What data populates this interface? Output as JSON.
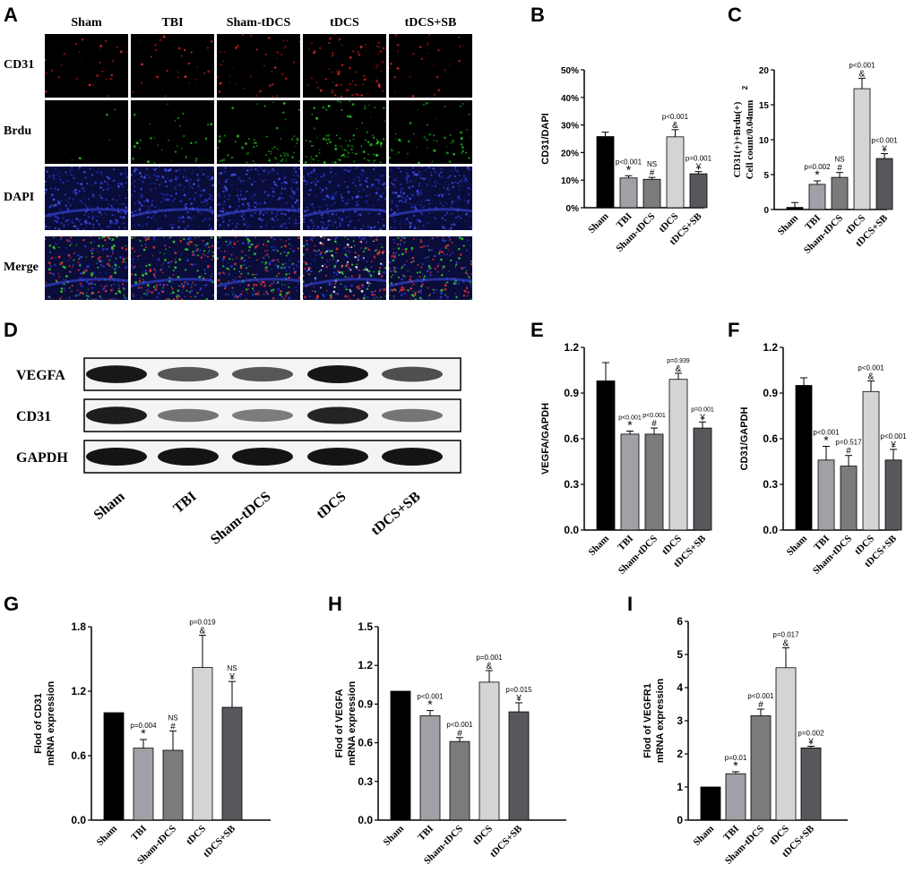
{
  "panels": [
    "A",
    "B",
    "C",
    "D",
    "E",
    "F",
    "G",
    "H",
    "I"
  ],
  "panel_a": {
    "conditions": [
      "Sham",
      "TBI",
      "Sham-tDCS",
      "tDCS",
      "tDCS+SB"
    ],
    "stains": [
      "CD31",
      "Brdu",
      "DAPI",
      "Merge"
    ]
  },
  "panel_d": {
    "proteins": [
      "VEGFA",
      "CD31",
      "GAPDH"
    ],
    "lanes": [
      "Sham",
      "TBI",
      "Sham-tDCS",
      "tDCS",
      "tDCS+SB"
    ],
    "band_intensity": {
      "VEGFA": [
        0.98,
        0.63,
        0.63,
        0.99,
        0.67
      ],
      "CD31": [
        0.95,
        0.46,
        0.42,
        0.91,
        0.46
      ],
      "GAPDH": [
        1,
        1,
        1,
        1,
        1
      ]
    }
  },
  "colors": {
    "Sham": "#000000",
    "TBI": "#a0a0a6",
    "Sham-tDCS": "#7b7b7e",
    "tDCS": "#d4d4d4",
    "tDCS+SB": "#58585c"
  },
  "chart_data": [
    {
      "id": "B",
      "type": "bar",
      "categories": [
        "Sham",
        "TBI",
        "Sham-tDCS",
        "tDCS",
        "tDCS+SB"
      ],
      "values": [
        25.8,
        10.8,
        10.3,
        25.7,
        12.3
      ],
      "errors": [
        1.6,
        0.8,
        0.7,
        2.6,
        0.8
      ],
      "annotations": [
        [],
        [
          "p<0.001",
          "*"
        ],
        [
          "NS",
          "#"
        ],
        [
          "p<0.001",
          "&"
        ],
        [
          "p=0.001",
          "¥"
        ]
      ],
      "ylabel": [
        "CD31/DAPI"
      ],
      "ylim": [
        0,
        50
      ],
      "yticks": [
        0,
        10,
        20,
        30,
        40,
        50
      ],
      "ytick_labels": [
        "0%",
        "10%",
        "20%",
        "30%",
        "40%",
        "50%"
      ]
    },
    {
      "id": "C",
      "type": "bar",
      "categories": [
        "Sham",
        "TBI",
        "Sham-tDCS",
        "tDCS",
        "tDCS+SB"
      ],
      "values": [
        0.3,
        3.6,
        4.6,
        17.3,
        7.3
      ],
      "errors": [
        0.7,
        0.5,
        0.7,
        1.5,
        0.7
      ],
      "annotations": [
        [],
        [
          "p=0.002",
          "*"
        ],
        [
          "NS",
          "#"
        ],
        [
          "p<0.001",
          "&"
        ],
        [
          "p<0.001",
          "¥"
        ]
      ],
      "ylabel": [
        "CD31(+)+Brdu(+)",
        "Cell count/0.04mm",
        "2"
      ],
      "ylim": [
        0,
        20
      ],
      "yticks": [
        0,
        5,
        10,
        15,
        20
      ],
      "ytick_labels": [
        "0",
        "5",
        "10",
        "15",
        "20"
      ]
    },
    {
      "id": "E",
      "type": "bar",
      "categories": [
        "Sham",
        "TBI",
        "Sham-tDCS",
        "tDCS",
        "tDCS+SB"
      ],
      "values": [
        0.98,
        0.63,
        0.63,
        0.99,
        0.67
      ],
      "errors": [
        0.12,
        0.02,
        0.04,
        0.04,
        0.04
      ],
      "annotations": [
        [],
        [
          "p<0.001",
          "*"
        ],
        [
          "p<0.001",
          "#"
        ],
        [
          "p=0.939",
          "&"
        ],
        [
          "p=0.001",
          "¥"
        ]
      ],
      "ylabel": [
        "VEGFA/GAPDH"
      ],
      "ylim": [
        0,
        1.2
      ],
      "yticks": [
        0,
        0.3,
        0.6,
        0.9,
        1.2
      ],
      "ytick_labels": [
        "0.0",
        "0.3",
        "0.6",
        "0.9",
        "1.2"
      ]
    },
    {
      "id": "F",
      "type": "bar",
      "categories": [
        "Sham",
        "TBI",
        "Sham-tDCS",
        "tDCS",
        "tDCS+SB"
      ],
      "values": [
        0.95,
        0.46,
        0.42,
        0.91,
        0.46
      ],
      "errors": [
        0.05,
        0.09,
        0.07,
        0.07,
        0.07
      ],
      "annotations": [
        [],
        [
          "p<0.001",
          "*"
        ],
        [
          "p=0.517",
          "#"
        ],
        [
          "p<0.001",
          "&"
        ],
        [
          "p<0.001",
          "¥"
        ]
      ],
      "ylabel": [
        "CD31/GAPDH"
      ],
      "ylim": [
        0,
        1.2
      ],
      "yticks": [
        0,
        0.3,
        0.6,
        0.9,
        1.2
      ],
      "ytick_labels": [
        "0.0",
        "0.3",
        "0.6",
        "0.9",
        "1.2"
      ]
    },
    {
      "id": "G",
      "type": "bar",
      "categories": [
        "Sham",
        "TBI",
        "Sham-tDCS",
        "tDCS",
        "tDCS+SB"
      ],
      "values": [
        1.0,
        0.67,
        0.65,
        1.42,
        1.05
      ],
      "errors": [
        0.0,
        0.08,
        0.18,
        0.3,
        0.24
      ],
      "annotations": [
        [],
        [
          "p=0.004",
          "*"
        ],
        [
          "NS",
          "#"
        ],
        [
          "p=0.019",
          "&"
        ],
        [
          "NS",
          "¥"
        ]
      ],
      "ylabel": [
        "Flod of CD31",
        "mRNA expression"
      ],
      "ylim": [
        0,
        1.8
      ],
      "yticks": [
        0,
        0.6,
        1.2,
        1.8
      ],
      "ytick_labels": [
        "0.0",
        "0.6",
        "1.2",
        "1.8"
      ]
    },
    {
      "id": "H",
      "type": "bar",
      "categories": [
        "Sham",
        "TBI",
        "Sham-tDCS",
        "tDCS",
        "tDCS+SB"
      ],
      "values": [
        1.0,
        0.81,
        0.61,
        1.07,
        0.84
      ],
      "errors": [
        0.0,
        0.04,
        0.03,
        0.09,
        0.07
      ],
      "annotations": [
        [],
        [
          "p<0.001",
          "*"
        ],
        [
          "p<0.001",
          "#"
        ],
        [
          "p=0.001",
          "&"
        ],
        [
          "p=0.015",
          "¥"
        ]
      ],
      "ylabel": [
        "Flod of VEGFA",
        "mRNA expression"
      ],
      "ylim": [
        0,
        1.5
      ],
      "yticks": [
        0,
        0.3,
        0.6,
        0.9,
        1.2,
        1.5
      ],
      "ytick_labels": [
        "0.0",
        "0.3",
        "0.6",
        "0.9",
        "1.2",
        "1.5"
      ]
    },
    {
      "id": "I",
      "type": "bar",
      "categories": [
        "Sham",
        "TBI",
        "Sham-tDCS",
        "tDCS",
        "tDCS+SB"
      ],
      "values": [
        1.0,
        1.4,
        3.15,
        4.6,
        2.18
      ],
      "errors": [
        0.0,
        0.06,
        0.2,
        0.6,
        0.05
      ],
      "annotations": [
        [],
        [
          "p=0.01",
          "*"
        ],
        [
          "p<0.001",
          "#"
        ],
        [
          "p=0.017",
          "&"
        ],
        [
          "p=0.002",
          "¥"
        ]
      ],
      "ylabel": [
        "Flod of VEGFR1",
        "mRNA expression"
      ],
      "ylim": [
        0,
        6
      ],
      "yticks": [
        0,
        1,
        2,
        3,
        4,
        5,
        6
      ],
      "ytick_labels": [
        "0",
        "1",
        "2",
        "3",
        "4",
        "5",
        "6"
      ]
    }
  ]
}
